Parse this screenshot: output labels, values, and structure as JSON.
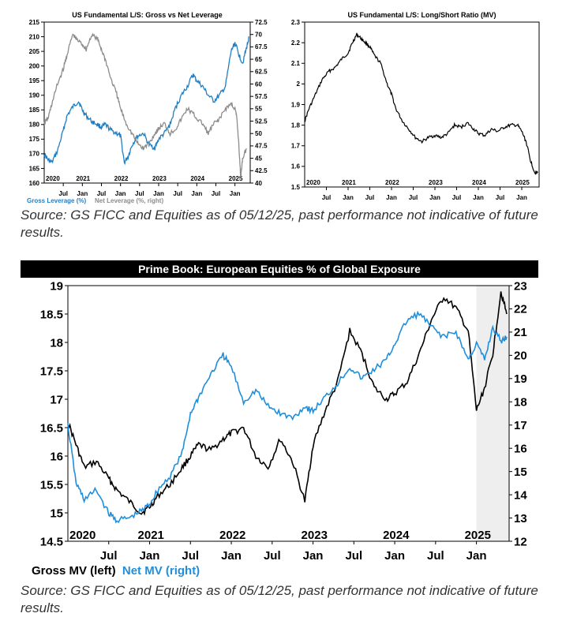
{
  "charts_meta": {
    "source_text_1": "Source: GS FICC and Equities as of 05/12/25, past performance not indicative of future results.",
    "source_text_2": "Source: GS FICC and Equities as of 05/12/25, past performance not indicative of future results."
  },
  "colors": {
    "blue": "#1f7fc4",
    "gray": "#8c8c8c",
    "black": "#000000",
    "highlight": "#eeeeee"
  },
  "chart_data": [
    {
      "type": "line",
      "title": "US Fundamental L/S: Gross vs Net Leverage",
      "x_ticks": [
        "Jul",
        "Jan",
        "Jul",
        "Jan",
        "Jul",
        "Jan",
        "Jul",
        "Jan",
        "Jul",
        "Jan"
      ],
      "year_labels": [
        "2020",
        "2021",
        "2022",
        "2023",
        "2024",
        "2025"
      ],
      "xlim": [
        2020.0,
        2025.4
      ],
      "ylim_left": [
        160,
        215
      ],
      "ylim_right": [
        40,
        72.5
      ],
      "y_ticks_left": [
        "160",
        "165",
        "170",
        "175",
        "180",
        "185",
        "190",
        "195",
        "200",
        "205",
        "210",
        "215"
      ],
      "y_ticks_right": [
        "40",
        "42.5",
        "45",
        "47.5",
        "50",
        "52.5",
        "55",
        "57.5",
        "60",
        "62.5",
        "65",
        "67.5",
        "70",
        "72.5"
      ],
      "series": [
        {
          "name": "Gross Leverage (%)",
          "axis": "left",
          "color": "#1f7fc4",
          "x": [
            2020.0,
            2020.1,
            2020.2,
            2020.35,
            2020.5,
            2020.6,
            2020.75,
            2020.9,
            2021.0,
            2021.1,
            2021.25,
            2021.4,
            2021.5,
            2021.6,
            2021.75,
            2021.9,
            2022.0,
            2022.1,
            2022.2,
            2022.3,
            2022.45,
            2022.6,
            2022.75,
            2022.9,
            2023.0,
            2023.15,
            2023.3,
            2023.45,
            2023.6,
            2023.75,
            2023.9,
            2024.0,
            2024.15,
            2024.3,
            2024.45,
            2024.6,
            2024.75,
            2024.9,
            2025.0,
            2025.1,
            2025.2,
            2025.3,
            2025.37
          ],
          "y": [
            170,
            168,
            167,
            171,
            178,
            183,
            186,
            188,
            185,
            183,
            181,
            180,
            179,
            180,
            178,
            177,
            176,
            167,
            169,
            173,
            176,
            177,
            173,
            172,
            175,
            177,
            180,
            186,
            190,
            193,
            197,
            195,
            193,
            190,
            188,
            190,
            193,
            205,
            208,
            204,
            201,
            206,
            210
          ]
        },
        {
          "name": "Net Leverage (%, right)",
          "axis": "right",
          "color": "#8c8c8c",
          "x": [
            2020.0,
            2020.1,
            2020.2,
            2020.35,
            2020.5,
            2020.6,
            2020.75,
            2020.85,
            2021.0,
            2021.1,
            2021.25,
            2021.4,
            2021.5,
            2021.6,
            2021.75,
            2021.9,
            2022.0,
            2022.15,
            2022.3,
            2022.45,
            2022.6,
            2022.75,
            2022.9,
            2023.0,
            2023.15,
            2023.3,
            2023.45,
            2023.6,
            2023.75,
            2023.9,
            2024.0,
            2024.15,
            2024.3,
            2024.45,
            2024.6,
            2024.75,
            2024.9,
            2025.0,
            2025.05,
            2025.1,
            2025.15,
            2025.2,
            2025.3
          ],
          "y": [
            52,
            53,
            56,
            60,
            63,
            66,
            70,
            69,
            68,
            67,
            70,
            69,
            67,
            65,
            61,
            58,
            55,
            52,
            50,
            48,
            47,
            48,
            50,
            51,
            52,
            50,
            51,
            53,
            55,
            54,
            53,
            52,
            50,
            52,
            53,
            55,
            56,
            55,
            53,
            48,
            41,
            45,
            47
          ]
        }
      ]
    },
    {
      "type": "line",
      "title": "US Fundamental L/S: Long/Short Ratio (MV)",
      "x_ticks": [
        "Jul",
        "Jan",
        "Jul",
        "Jan",
        "Jul",
        "Jan",
        "Jul",
        "Jan",
        "Jul",
        "Jan"
      ],
      "year_labels": [
        "2020",
        "2021",
        "2022",
        "2023",
        "2024",
        "2025"
      ],
      "xlim": [
        2020.0,
        2025.4
      ],
      "ylim": [
        1.5,
        2.3
      ],
      "y_ticks": [
        "1.5",
        "1.6",
        "1.7",
        "1.8",
        "1.9",
        "2",
        "2.1",
        "2.2",
        "2.3"
      ],
      "series": [
        {
          "name": "",
          "color": "#000000",
          "x": [
            2020.0,
            2020.1,
            2020.25,
            2020.4,
            2020.55,
            2020.7,
            2020.85,
            2021.0,
            2021.1,
            2021.2,
            2021.3,
            2021.4,
            2021.5,
            2021.6,
            2021.75,
            2021.9,
            2022.0,
            2022.1,
            2022.25,
            2022.4,
            2022.55,
            2022.7,
            2022.85,
            2023.0,
            2023.15,
            2023.3,
            2023.45,
            2023.6,
            2023.75,
            2023.9,
            2024.0,
            2024.15,
            2024.3,
            2024.45,
            2024.6,
            2024.75,
            2024.9,
            2025.0,
            2025.1,
            2025.2,
            2025.3,
            2025.37
          ],
          "y": [
            1.82,
            1.88,
            1.95,
            2.02,
            2.06,
            2.08,
            2.12,
            2.15,
            2.2,
            2.24,
            2.22,
            2.2,
            2.18,
            2.14,
            2.1,
            2.0,
            1.95,
            1.88,
            1.82,
            1.78,
            1.74,
            1.72,
            1.74,
            1.75,
            1.74,
            1.76,
            1.8,
            1.79,
            1.81,
            1.78,
            1.76,
            1.75,
            1.78,
            1.77,
            1.79,
            1.8,
            1.8,
            1.77,
            1.72,
            1.63,
            1.57,
            1.57
          ]
        }
      ]
    },
    {
      "type": "line",
      "title": "Prime Book: European Equities % of Global Exposure",
      "x_ticks": [
        "Jul",
        "Jan",
        "Jul",
        "Jan",
        "Jul",
        "Jan",
        "Jul",
        "Jan",
        "Jul",
        "Jan"
      ],
      "year_labels": [
        "2020",
        "2021",
        "2022",
        "2023",
        "2024",
        "2025"
      ],
      "xlim": [
        2020.0,
        2025.4
      ],
      "highlight_range": [
        2025.0,
        2025.4
      ],
      "ylim_left": [
        14.5,
        19
      ],
      "ylim_right": [
        12,
        23
      ],
      "y_ticks_left": [
        "14.5",
        "15",
        "15.5",
        "16",
        "16.5",
        "17",
        "17.5",
        "18",
        "18.5",
        "19"
      ],
      "y_ticks_right": [
        "12",
        "13",
        "14",
        "15",
        "16",
        "17",
        "18",
        "19",
        "20",
        "21",
        "22",
        "23"
      ],
      "legend": [
        {
          "label": "Gross MV (left)",
          "color": "#000000"
        },
        {
          "label": "Net MV (right)",
          "color": "#1f8fdc"
        }
      ],
      "series": [
        {
          "name": "Gross MV (left)",
          "axis": "left",
          "color": "#000000",
          "x": [
            2020.0,
            2020.1,
            2020.2,
            2020.35,
            2020.5,
            2020.6,
            2020.75,
            2020.9,
            2021.0,
            2021.1,
            2021.25,
            2021.4,
            2021.5,
            2021.6,
            2021.75,
            2021.9,
            2022.0,
            2022.15,
            2022.3,
            2022.45,
            2022.6,
            2022.75,
            2022.9,
            2023.0,
            2023.15,
            2023.3,
            2023.45,
            2023.6,
            2023.75,
            2023.9,
            2024.0,
            2024.15,
            2024.3,
            2024.45,
            2024.6,
            2024.75,
            2024.9,
            2025.0,
            2025.1,
            2025.2,
            2025.3,
            2025.37
          ],
          "y": [
            16.6,
            16.2,
            15.8,
            15.9,
            15.6,
            15.4,
            15.2,
            15.0,
            15.1,
            15.3,
            15.5,
            15.8,
            16.0,
            16.2,
            16.1,
            16.3,
            16.4,
            16.5,
            16.0,
            15.8,
            16.3,
            15.9,
            15.2,
            16.2,
            16.8,
            17.3,
            18.2,
            17.8,
            17.2,
            17.0,
            17.1,
            17.3,
            17.8,
            18.4,
            18.8,
            18.6,
            18.2,
            16.8,
            17.2,
            17.8,
            18.9,
            18.5
          ]
        },
        {
          "name": "Net MV (right)",
          "axis": "right",
          "color": "#1f8fdc",
          "x": [
            2020.0,
            2020.1,
            2020.2,
            2020.35,
            2020.5,
            2020.6,
            2020.75,
            2020.9,
            2021.0,
            2021.1,
            2021.25,
            2021.4,
            2021.5,
            2021.6,
            2021.75,
            2021.9,
            2022.0,
            2022.15,
            2022.3,
            2022.45,
            2022.6,
            2022.75,
            2022.9,
            2023.0,
            2023.15,
            2023.3,
            2023.45,
            2023.6,
            2023.75,
            2023.9,
            2024.0,
            2024.15,
            2024.3,
            2024.45,
            2024.6,
            2024.75,
            2024.9,
            2025.0,
            2025.1,
            2025.2,
            2025.3,
            2025.37
          ],
          "y": [
            17.0,
            14.5,
            13.8,
            14.2,
            13.2,
            12.9,
            13.0,
            13.3,
            13.6,
            14.2,
            14.8,
            15.8,
            17.5,
            18.2,
            19.2,
            20.0,
            19.5,
            18.0,
            18.5,
            17.8,
            17.5,
            17.3,
            17.8,
            17.6,
            18.2,
            18.8,
            19.5,
            19.0,
            19.4,
            19.8,
            20.5,
            21.5,
            21.8,
            21.2,
            20.8,
            21.0,
            19.8,
            20.5,
            19.8,
            21.2,
            20.6,
            20.8
          ]
        }
      ]
    }
  ]
}
